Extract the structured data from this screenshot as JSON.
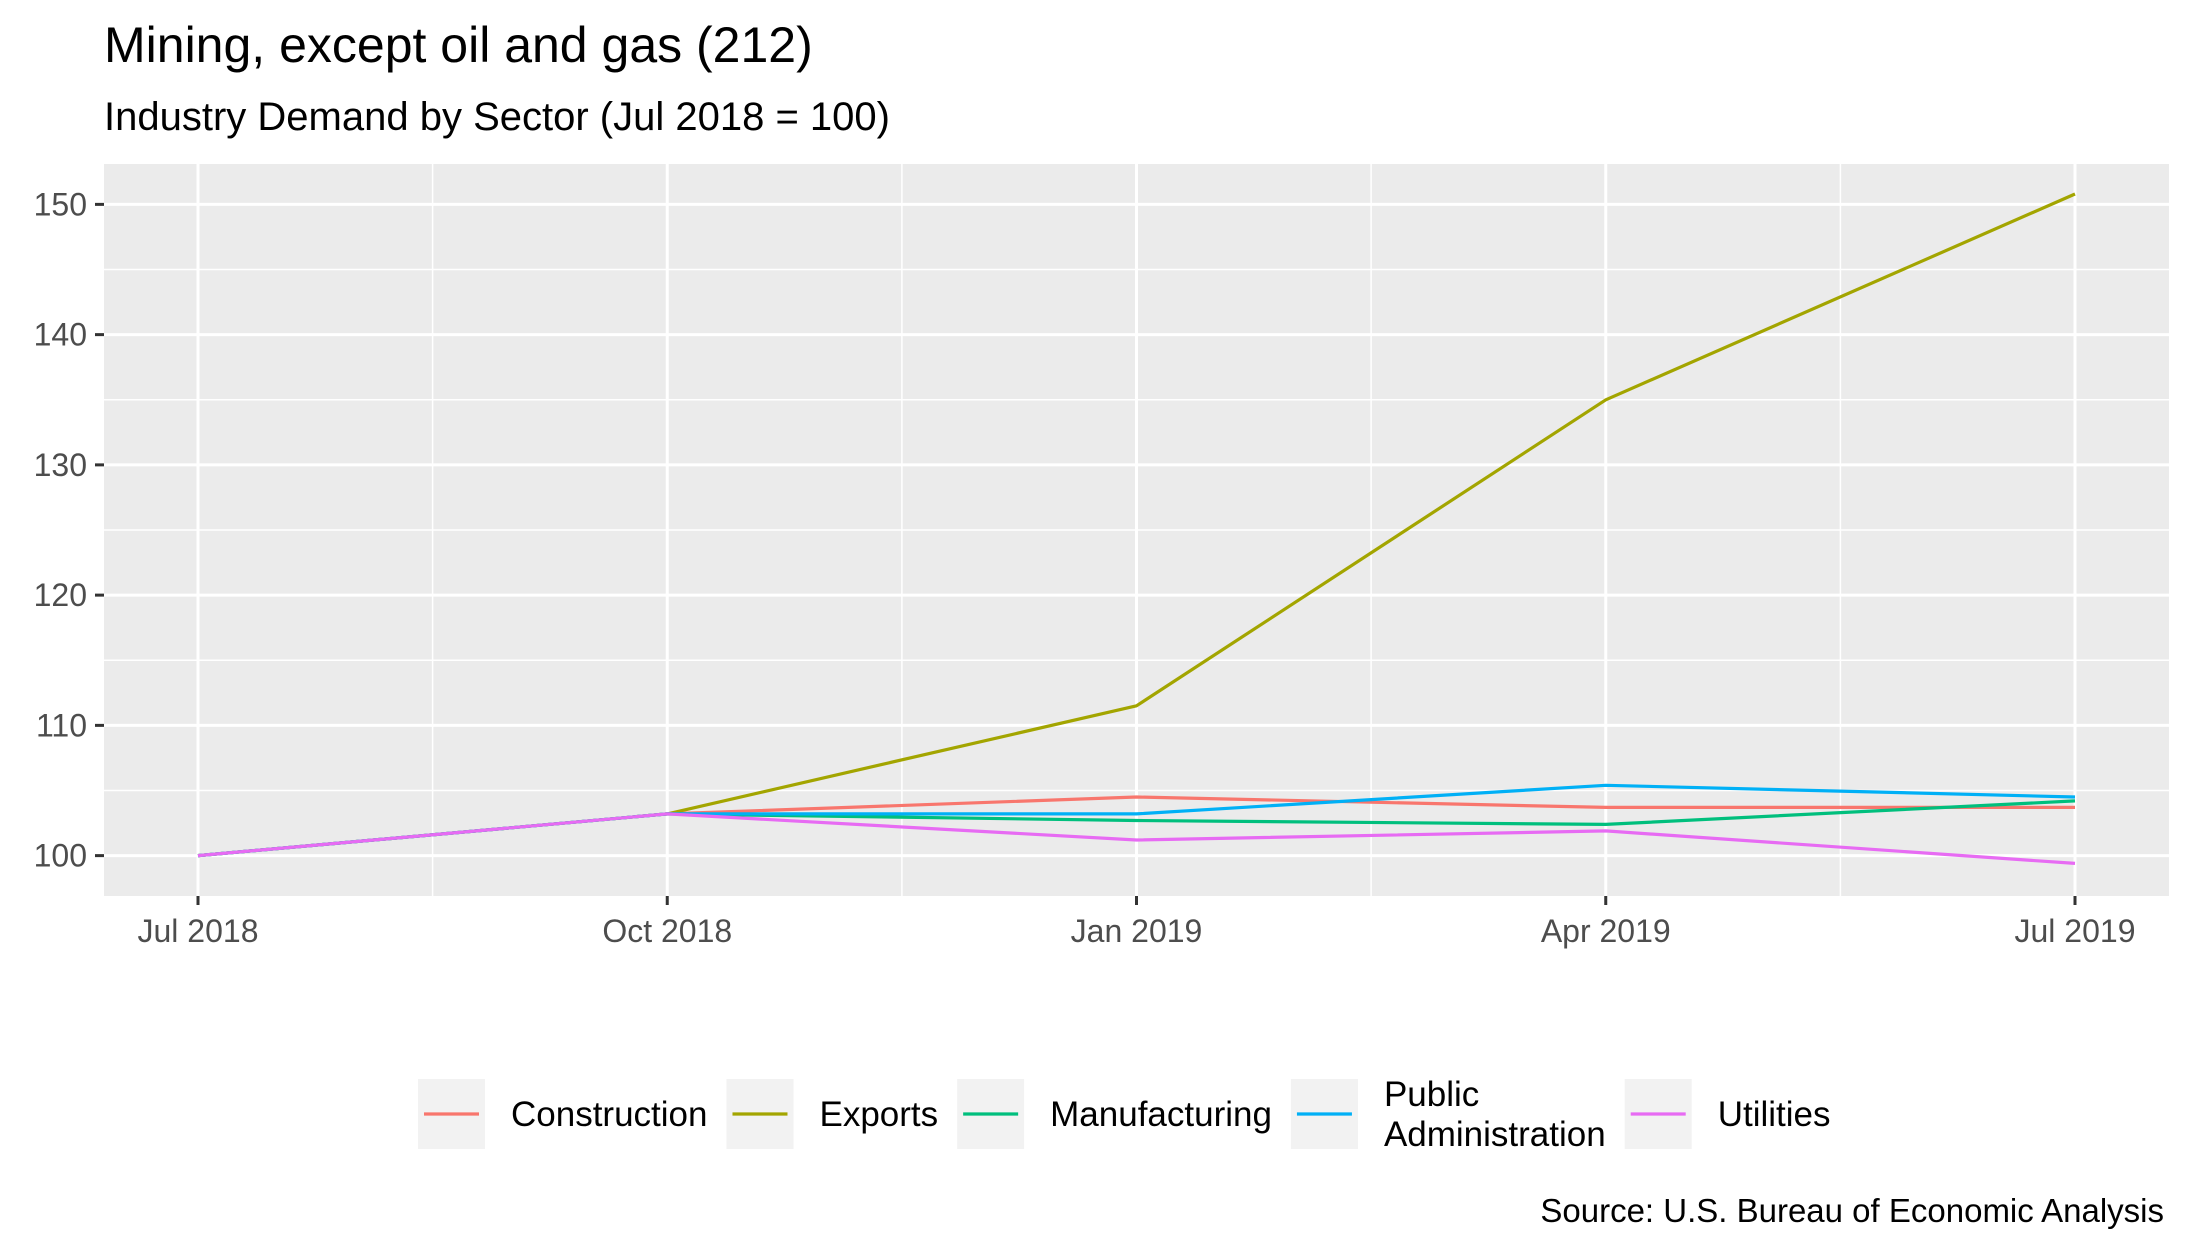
{
  "chart_data": {
    "type": "line",
    "title": "Mining, except oil and gas (212)",
    "subtitle": "Industry Demand by Sector (Jul 2018 = 100)",
    "caption": "Source: U.S. Bureau of Economic Analysis",
    "xlabel": "",
    "ylabel": "",
    "x": [
      "Jul 2018",
      "Oct 2018",
      "Jan 2019",
      "Apr 2019",
      "Jul 2019"
    ],
    "ylim": [
      96.9,
      153.1
    ],
    "yticks": [
      100,
      110,
      120,
      130,
      140,
      150
    ],
    "grid": true,
    "legend_position": "bottom",
    "series": [
      {
        "name": "Construction",
        "color": "#F8766D",
        "values": [
          100,
          103.2,
          104.5,
          103.7,
          103.7
        ]
      },
      {
        "name": "Exports",
        "color": "#A3A500",
        "values": [
          100,
          103.2,
          111.5,
          135.0,
          150.8
        ]
      },
      {
        "name": "Manufacturing",
        "color": "#00BF7D",
        "values": [
          100,
          103.2,
          102.7,
          102.4,
          104.2
        ]
      },
      {
        "name": "Public Administration",
        "legend_lines": [
          "Public",
          "Administration"
        ],
        "color": "#00B0F6",
        "values": [
          100,
          103.2,
          103.2,
          105.4,
          104.5
        ]
      },
      {
        "name": "Utilities",
        "color": "#E76BF3",
        "values": [
          100,
          103.2,
          101.2,
          101.9,
          99.4
        ]
      }
    ]
  }
}
